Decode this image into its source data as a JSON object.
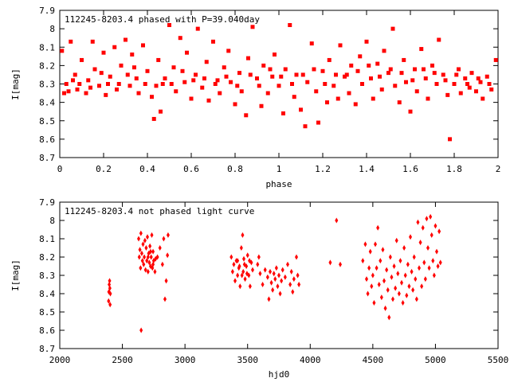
{
  "chart_data": [
    {
      "type": "scatter",
      "title": "112245-8203.4 phased with P=39.040day",
      "xlabel": "phase",
      "ylabel": "I[mag]",
      "xlim": [
        0,
        2
      ],
      "ylim": [
        7.9,
        8.7
      ],
      "y_inverted": true,
      "grid": false,
      "marker_color": "#ff0000",
      "xticks": [
        0,
        0.2,
        0.4,
        0.6,
        0.8,
        1,
        1.2,
        1.4,
        1.6,
        1.8,
        2
      ],
      "xtick_labels": [
        "0",
        "0.2",
        "0.4",
        "0.6",
        "0.8",
        "1",
        "1.2",
        "1.4",
        "1.6",
        "1.8",
        "2"
      ],
      "yticks": [
        7.9,
        8,
        8.1,
        8.2,
        8.3,
        8.4,
        8.5,
        8.6,
        8.7
      ],
      "ytick_labels": [
        "7.9",
        "8",
        "8.1",
        "8.2",
        "8.3",
        "8.4",
        "8.5",
        "8.6",
        "8.7"
      ],
      "points": [
        [
          0.01,
          8.12
        ],
        [
          0.03,
          8.3
        ],
        [
          0.04,
          8.34
        ],
        [
          0.05,
          8.07
        ],
        [
          0.07,
          8.25
        ],
        [
          0.08,
          8.33
        ],
        [
          0.1,
          8.17
        ],
        [
          0.12,
          8.35
        ],
        [
          0.13,
          8.28
        ],
        [
          0.15,
          8.07
        ],
        [
          0.16,
          8.22
        ],
        [
          0.18,
          8.31
        ],
        [
          0.2,
          8.13
        ],
        [
          0.21,
          8.36
        ],
        [
          0.23,
          8.26
        ],
        [
          0.25,
          8.1
        ],
        [
          0.26,
          8.33
        ],
        [
          0.28,
          8.2
        ],
        [
          0.3,
          8.06
        ],
        [
          0.32,
          8.31
        ],
        [
          0.33,
          8.14
        ],
        [
          0.35,
          8.27
        ],
        [
          0.36,
          8.35
        ],
        [
          0.38,
          8.09
        ],
        [
          0.4,
          8.23
        ],
        [
          0.42,
          8.37
        ],
        [
          0.43,
          8.49
        ],
        [
          0.45,
          8.17
        ],
        [
          0.46,
          8.45
        ],
        [
          0.48,
          8.27
        ],
        [
          0.5,
          7.98
        ],
        [
          0.52,
          8.21
        ],
        [
          0.53,
          8.34
        ],
        [
          0.55,
          8.05
        ],
        [
          0.57,
          8.29
        ],
        [
          0.58,
          8.13
        ],
        [
          0.6,
          8.38
        ],
        [
          0.62,
          8.25
        ],
        [
          0.63,
          8.0
        ],
        [
          0.65,
          8.32
        ],
        [
          0.67,
          8.18
        ],
        [
          0.68,
          8.39
        ],
        [
          0.7,
          8.07
        ],
        [
          0.72,
          8.28
        ],
        [
          0.73,
          8.35
        ],
        [
          0.75,
          8.21
        ],
        [
          0.77,
          8.12
        ],
        [
          0.78,
          8.29
        ],
        [
          0.8,
          8.41
        ],
        [
          0.82,
          8.24
        ],
        [
          0.83,
          8.34
        ],
        [
          0.85,
          8.47
        ],
        [
          0.86,
          8.16
        ],
        [
          0.88,
          7.99
        ],
        [
          0.9,
          8.27
        ],
        [
          0.92,
          8.42
        ],
        [
          0.93,
          8.2
        ],
        [
          0.95,
          8.35
        ],
        [
          0.97,
          8.26
        ],
        [
          0.98,
          8.14
        ],
        [
          1.0,
          8.31
        ],
        [
          1.02,
          8.46
        ],
        [
          1.03,
          8.22
        ],
        [
          1.05,
          7.98
        ],
        [
          1.07,
          8.37
        ],
        [
          1.08,
          8.25
        ],
        [
          1.1,
          8.44
        ],
        [
          1.12,
          8.53
        ],
        [
          1.13,
          8.29
        ],
        [
          1.15,
          8.08
        ],
        [
          1.17,
          8.34
        ],
        [
          1.18,
          8.51
        ],
        [
          1.2,
          8.23
        ],
        [
          1.22,
          8.4
        ],
        [
          1.23,
          8.17
        ],
        [
          1.25,
          8.31
        ],
        [
          1.27,
          8.38
        ],
        [
          1.28,
          8.09
        ],
        [
          1.3,
          8.26
        ],
        [
          1.32,
          8.35
        ],
        [
          1.33,
          8.2
        ],
        [
          1.35,
          8.41
        ],
        [
          1.37,
          8.15
        ],
        [
          1.38,
          8.3
        ],
        [
          1.4,
          8.07
        ],
        [
          1.42,
          8.27
        ],
        [
          1.43,
          8.38
        ],
        [
          1.45,
          8.19
        ],
        [
          1.47,
          8.33
        ],
        [
          1.48,
          8.12
        ],
        [
          1.5,
          8.24
        ],
        [
          1.52,
          8.0
        ],
        [
          1.53,
          8.31
        ],
        [
          1.55,
          8.4
        ],
        [
          1.57,
          8.17
        ],
        [
          1.58,
          8.29
        ],
        [
          1.6,
          8.45
        ],
        [
          1.62,
          8.22
        ],
        [
          1.63,
          8.34
        ],
        [
          1.65,
          8.11
        ],
        [
          1.67,
          8.27
        ],
        [
          1.68,
          8.38
        ],
        [
          1.7,
          8.2
        ],
        [
          1.72,
          8.3
        ],
        [
          1.73,
          8.06
        ],
        [
          1.75,
          8.25
        ],
        [
          1.77,
          8.36
        ],
        [
          1.78,
          8.6
        ],
        [
          1.8,
          8.3
        ],
        [
          1.82,
          8.22
        ],
        [
          1.83,
          8.35
        ],
        [
          1.85,
          8.27
        ],
        [
          1.87,
          8.32
        ],
        [
          1.88,
          8.24
        ],
        [
          1.9,
          8.34
        ],
        [
          1.92,
          8.29
        ],
        [
          1.93,
          8.38
        ],
        [
          1.95,
          8.26
        ],
        [
          1.97,
          8.33
        ],
        [
          1.99,
          8.17
        ],
        [
          0.02,
          8.35
        ],
        [
          0.06,
          8.28
        ],
        [
          0.09,
          8.3
        ],
        [
          0.14,
          8.32
        ],
        [
          0.19,
          8.24
        ],
        [
          0.22,
          8.3
        ],
        [
          0.27,
          8.3
        ],
        [
          0.31,
          8.25
        ],
        [
          0.34,
          8.21
        ],
        [
          0.39,
          8.3
        ],
        [
          0.44,
          8.31
        ],
        [
          0.47,
          8.3
        ],
        [
          0.51,
          8.3
        ],
        [
          0.56,
          8.23
        ],
        [
          0.61,
          8.28
        ],
        [
          0.66,
          8.27
        ],
        [
          0.71,
          8.3
        ],
        [
          0.76,
          8.26
        ],
        [
          0.81,
          8.31
        ],
        [
          0.87,
          8.25
        ],
        [
          0.91,
          8.31
        ],
        [
          0.96,
          8.22
        ],
        [
          1.01,
          8.26
        ],
        [
          1.06,
          8.3
        ],
        [
          1.11,
          8.25
        ],
        [
          1.16,
          8.22
        ],
        [
          1.21,
          8.3
        ],
        [
          1.26,
          8.25
        ],
        [
          1.31,
          8.25
        ],
        [
          1.36,
          8.23
        ],
        [
          1.41,
          8.2
        ],
        [
          1.46,
          8.26
        ],
        [
          1.51,
          8.22
        ],
        [
          1.56,
          8.24
        ],
        [
          1.61,
          8.28
        ],
        [
          1.66,
          8.22
        ],
        [
          1.71,
          8.24
        ],
        [
          1.76,
          8.28
        ],
        [
          1.81,
          8.25
        ],
        [
          1.86,
          8.3
        ],
        [
          1.91,
          8.27
        ],
        [
          1.96,
          8.3
        ]
      ]
    },
    {
      "type": "scatter",
      "title": "112245-8203.4 not phased light curve",
      "xlabel": "hjd0",
      "ylabel": "I[mag]",
      "xlim": [
        2000,
        5500
      ],
      "ylim": [
        7.9,
        8.7
      ],
      "y_inverted": true,
      "grid": false,
      "marker_color": "#ff0000",
      "xticks": [
        2000,
        2500,
        3000,
        3500,
        4000,
        4500,
        5000,
        5500
      ],
      "xtick_labels": [
        "2000",
        "2500",
        "3000",
        "3500",
        "4000",
        "4500",
        "5000",
        "5500"
      ],
      "yticks": [
        7.9,
        8,
        8.1,
        8.2,
        8.3,
        8.4,
        8.5,
        8.6,
        8.7
      ],
      "ytick_labels": [
        "7.9",
        "8",
        "8.1",
        "8.2",
        "8.3",
        "8.4",
        "8.5",
        "8.6",
        "8.7"
      ],
      "points": [
        [
          2390,
          8.44
        ],
        [
          2392,
          8.39
        ],
        [
          2395,
          8.35
        ],
        [
          2398,
          8.33
        ],
        [
          2400,
          8.37
        ],
        [
          2402,
          8.46
        ],
        [
          2404,
          8.4
        ],
        [
          2630,
          8.1
        ],
        [
          2635,
          8.2
        ],
        [
          2640,
          8.16
        ],
        [
          2645,
          8.26
        ],
        [
          2648,
          8.07
        ],
        [
          2650,
          8.6
        ],
        [
          2655,
          8.18
        ],
        [
          2660,
          8.22
        ],
        [
          2665,
          8.13
        ],
        [
          2670,
          8.24
        ],
        [
          2675,
          8.2
        ],
        [
          2680,
          8.11
        ],
        [
          2685,
          8.27
        ],
        [
          2690,
          8.15
        ],
        [
          2695,
          8.22
        ],
        [
          2700,
          8.09
        ],
        [
          2705,
          8.28
        ],
        [
          2710,
          8.18
        ],
        [
          2715,
          8.23
        ],
        [
          2720,
          8.14
        ],
        [
          2725,
          8.25
        ],
        [
          2730,
          8.2
        ],
        [
          2735,
          8.08
        ],
        [
          2740,
          8.26
        ],
        [
          2745,
          8.17
        ],
        [
          2750,
          8.22
        ],
        [
          2760,
          8.28
        ],
        [
          2780,
          8.2
        ],
        [
          2800,
          8.15
        ],
        [
          2820,
          8.24
        ],
        [
          2830,
          8.1
        ],
        [
          2840,
          8.43
        ],
        [
          2850,
          8.33
        ],
        [
          2860,
          8.19
        ],
        [
          2865,
          8.08
        ],
        [
          3370,
          8.2
        ],
        [
          3380,
          8.28
        ],
        [
          3390,
          8.24
        ],
        [
          3400,
          8.33
        ],
        [
          3410,
          8.22
        ],
        [
          3420,
          8.3
        ],
        [
          3430,
          8.26
        ],
        [
          3440,
          8.36
        ],
        [
          3450,
          8.15
        ],
        [
          3460,
          8.08
        ],
        [
          3465,
          8.28
        ],
        [
          3470,
          8.21
        ],
        [
          3480,
          8.32
        ],
        [
          3490,
          8.25
        ],
        [
          3500,
          8.19
        ],
        [
          3510,
          8.3
        ],
        [
          3520,
          8.36
        ],
        [
          3530,
          8.23
        ],
        [
          3540,
          8.27
        ],
        [
          3580,
          8.24
        ],
        [
          3590,
          8.2
        ],
        [
          3600,
          8.29
        ],
        [
          3620,
          8.35
        ],
        [
          3640,
          8.27
        ],
        [
          3660,
          8.31
        ],
        [
          3670,
          8.43
        ],
        [
          3680,
          8.28
        ],
        [
          3690,
          8.34
        ],
        [
          3700,
          8.38
        ],
        [
          3710,
          8.29
        ],
        [
          3720,
          8.32
        ],
        [
          3730,
          8.26
        ],
        [
          3740,
          8.36
        ],
        [
          3750,
          8.3
        ],
        [
          3760,
          8.4
        ],
        [
          3770,
          8.33
        ],
        [
          3780,
          8.27
        ],
        [
          3800,
          8.31
        ],
        [
          3820,
          8.24
        ],
        [
          3840,
          8.35
        ],
        [
          3850,
          8.28
        ],
        [
          3860,
          8.39
        ],
        [
          3870,
          8.32
        ],
        [
          3890,
          8.2
        ],
        [
          3900,
          8.3
        ],
        [
          3910,
          8.35
        ],
        [
          4160,
          8.23
        ],
        [
          4210,
          8.0
        ],
        [
          4240,
          8.24
        ],
        [
          4420,
          8.22
        ],
        [
          4440,
          8.13
        ],
        [
          4450,
          8.32
        ],
        [
          4460,
          8.4
        ],
        [
          4470,
          8.26
        ],
        [
          4480,
          8.17
        ],
        [
          4490,
          8.36
        ],
        [
          4500,
          8.3
        ],
        [
          4510,
          8.45
        ],
        [
          4520,
          8.13
        ],
        [
          4530,
          8.26
        ],
        [
          4540,
          8.04
        ],
        [
          4550,
          8.35
        ],
        [
          4560,
          8.22
        ],
        [
          4570,
          8.42
        ],
        [
          4580,
          8.16
        ],
        [
          4590,
          8.33
        ],
        [
          4600,
          8.48
        ],
        [
          4610,
          8.27
        ],
        [
          4620,
          8.38
        ],
        [
          4630,
          8.53
        ],
        [
          4640,
          8.2
        ],
        [
          4650,
          8.31
        ],
        [
          4660,
          8.43
        ],
        [
          4670,
          8.25
        ],
        [
          4680,
          8.37
        ],
        [
          4690,
          8.11
        ],
        [
          4700,
          8.29
        ],
        [
          4710,
          8.4
        ],
        [
          4720,
          8.22
        ],
        [
          4730,
          8.34
        ],
        [
          4740,
          8.45
        ],
        [
          4750,
          8.15
        ],
        [
          4760,
          8.3
        ],
        [
          4770,
          8.41
        ],
        [
          4780,
          8.24
        ],
        [
          4790,
          8.36
        ],
        [
          4800,
          8.09
        ],
        [
          4810,
          8.28
        ],
        [
          4820,
          8.38
        ],
        [
          4830,
          8.2
        ],
        [
          4840,
          8.32
        ],
        [
          4850,
          8.43
        ],
        [
          4860,
          8.01
        ],
        [
          4870,
          8.26
        ],
        [
          4880,
          8.12
        ],
        [
          4890,
          8.36
        ],
        [
          4900,
          8.04
        ],
        [
          4910,
          8.23
        ],
        [
          4920,
          8.32
        ],
        [
          4930,
          7.99
        ],
        [
          4940,
          8.15
        ],
        [
          4950,
          8.26
        ],
        [
          4960,
          7.98
        ],
        [
          4970,
          8.08
        ],
        [
          4980,
          8.22
        ],
        [
          4990,
          8.3
        ],
        [
          5000,
          8.03
        ],
        [
          5010,
          8.17
        ],
        [
          5020,
          8.25
        ],
        [
          5030,
          8.06
        ],
        [
          5040,
          8.23
        ],
        [
          3420,
          8.22
        ],
        [
          3435,
          8.25
        ],
        [
          3455,
          8.3
        ],
        [
          3475,
          8.24
        ],
        [
          3495,
          8.29
        ],
        [
          3515,
          8.22
        ],
        [
          2705,
          8.2
        ],
        [
          2725,
          8.17
        ],
        [
          2745,
          8.24
        ],
        [
          2765,
          8.21
        ]
      ]
    }
  ]
}
